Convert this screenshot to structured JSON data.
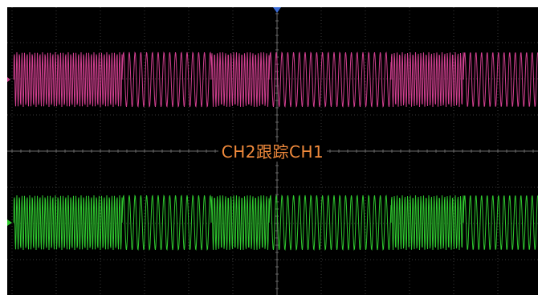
{
  "screen": {
    "background_color": "#000000",
    "grid_color": "#3a3a3a",
    "center_axis_color": "#6a6a6a",
    "grid": {
      "horizontal_divisions": 12,
      "vertical_divisions": 8
    }
  },
  "label": {
    "text": "CH2跟踪CH1",
    "color": "#f08a3c"
  },
  "markers": {
    "trigger_position_icon": {
      "name": "trigger-position-icon",
      "color": "#3a6bd6"
    },
    "ch1_offset_icon": {
      "name": "channel-1-offset-icon",
      "color": "#d03f8f"
    },
    "ch2_offset_icon": {
      "name": "channel-2-offset-icon",
      "color": "#2fc82f"
    }
  },
  "channels": [
    {
      "id": "CH1",
      "color": "#d03f8f"
    },
    {
      "id": "CH2",
      "color": "#2fc82f"
    }
  ],
  "waveform_pattern": {
    "segments_note_free": true,
    "segments": [
      {
        "type": "dense"
      },
      {
        "type": "sparse"
      },
      {
        "type": "dense"
      },
      {
        "type": "sparse"
      },
      {
        "type": "dense"
      },
      {
        "type": "sparse"
      }
    ]
  }
}
